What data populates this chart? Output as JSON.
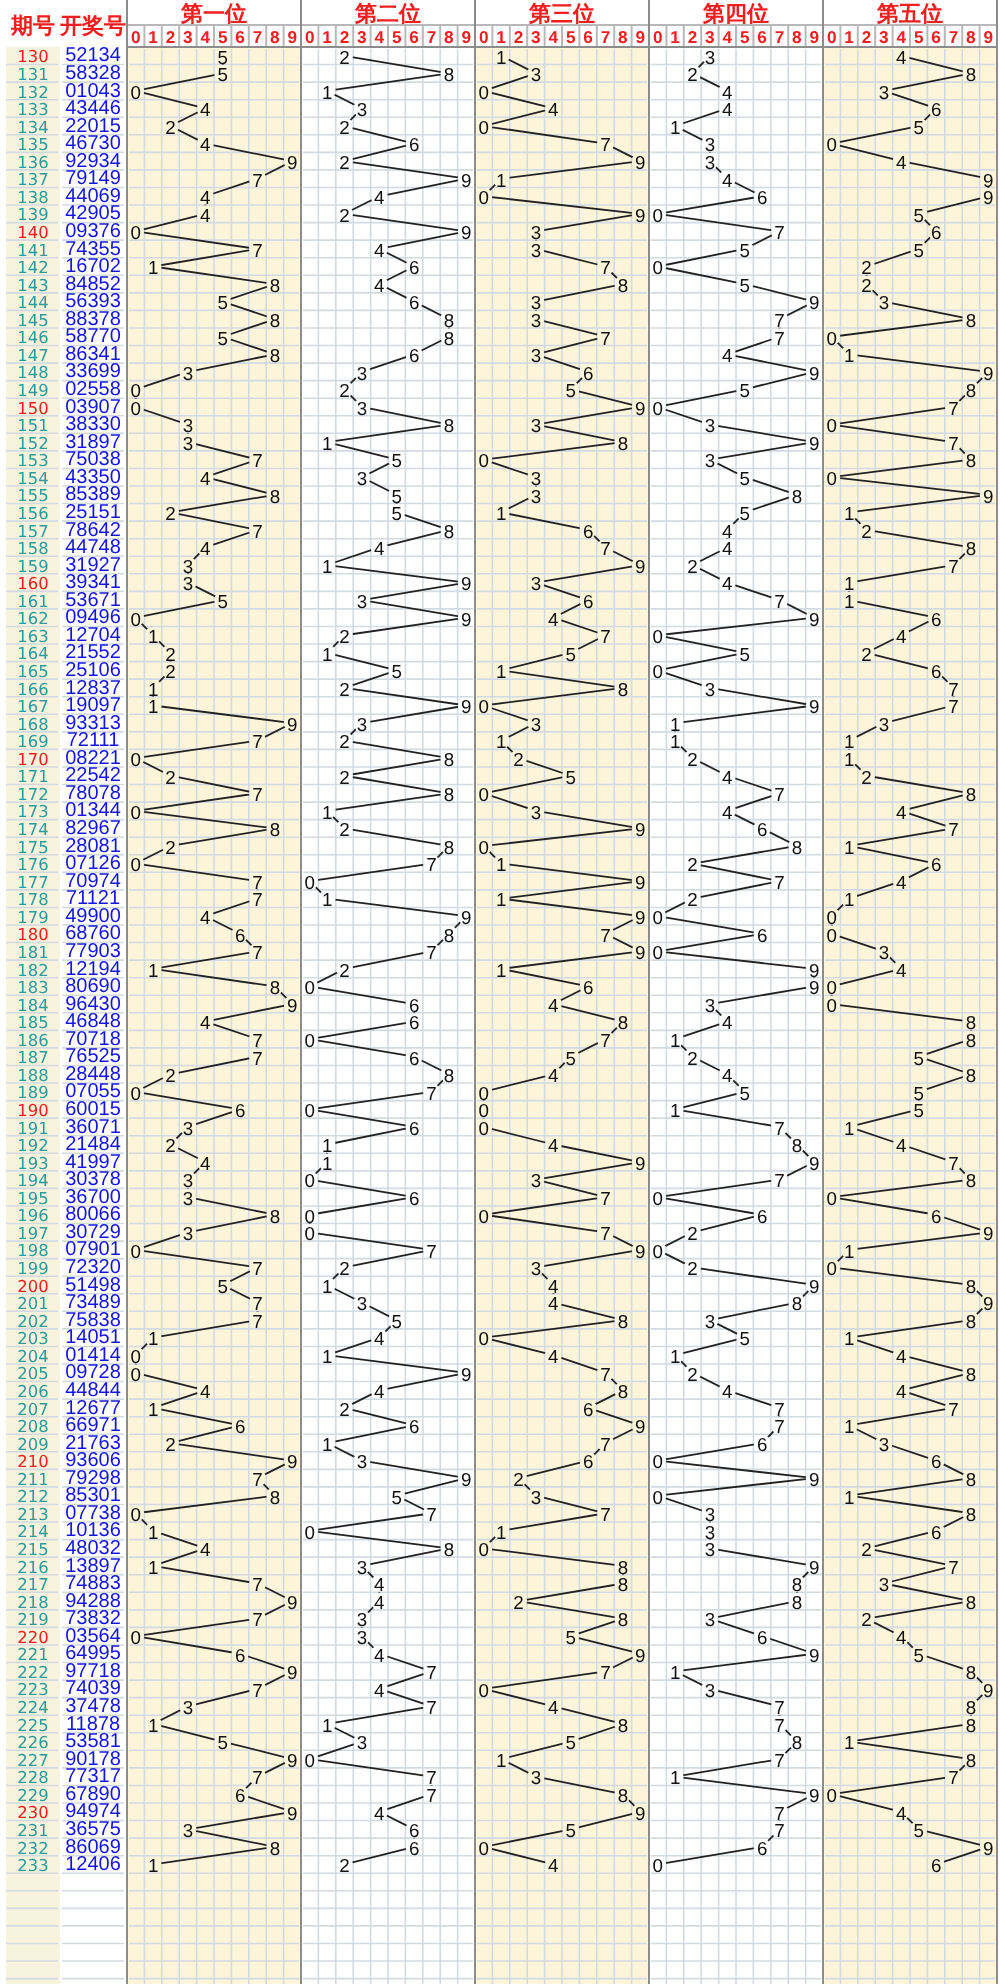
{
  "chart_data": [
    {
      "type": "line",
      "title": "第一位",
      "ylabel": "期号",
      "orientation": "horizontal",
      "color": "#222222",
      "xlim": [
        -0.5,
        9.5
      ],
      "xticks": [
        0,
        1,
        2,
        3,
        4,
        5,
        6,
        7,
        8,
        9
      ],
      "data_labels": true,
      "grid": true,
      "categories": [
        "130",
        "131",
        "132",
        "133",
        "134",
        "135",
        "136",
        "137",
        "138",
        "139",
        "140",
        "141",
        "142",
        "143",
        "144",
        "145",
        "146",
        "147",
        "148",
        "149",
        "150",
        "151",
        "152",
        "153",
        "154",
        "155",
        "156",
        "157",
        "158",
        "159",
        "160",
        "161",
        "162",
        "163",
        "164",
        "165",
        "166",
        "167",
        "168",
        "169",
        "170",
        "171",
        "172",
        "173",
        "174",
        "175",
        "176",
        "177",
        "178",
        "179",
        "180",
        "181",
        "182",
        "183",
        "184",
        "185",
        "186",
        "187",
        "188",
        "189",
        "190",
        "191",
        "192",
        "193",
        "194",
        "195",
        "196",
        "197",
        "198",
        "199",
        "200",
        "201",
        "202",
        "203",
        "204",
        "205",
        "206",
        "207",
        "208",
        "209",
        "210",
        "211",
        "212",
        "213",
        "214",
        "215",
        "216",
        "217",
        "218",
        "219",
        "220",
        "221",
        "222",
        "223",
        "224",
        "225",
        "226",
        "227",
        "228",
        "229",
        "230",
        "231",
        "232",
        "233"
      ],
      "values": [
        5,
        5,
        0,
        4,
        2,
        4,
        9,
        7,
        4,
        4,
        0,
        7,
        1,
        8,
        5,
        8,
        5,
        8,
        3,
        0,
        0,
        3,
        3,
        7,
        4,
        8,
        2,
        7,
        4,
        3,
        3,
        5,
        0,
        1,
        2,
        2,
        1,
        1,
        9,
        7,
        0,
        2,
        7,
        0,
        8,
        2,
        0,
        7,
        7,
        4,
        6,
        7,
        1,
        8,
        9,
        4,
        7,
        7,
        2,
        0,
        6,
        3,
        2,
        4,
        3,
        3,
        8,
        3,
        0,
        7,
        5,
        7,
        7,
        1,
        0,
        0,
        4,
        1,
        6,
        2,
        9,
        7,
        8,
        0,
        1,
        4,
        1,
        7,
        9,
        7,
        0,
        6,
        9,
        7,
        3,
        1,
        5,
        9,
        7,
        6,
        9,
        3,
        8,
        1
      ]
    },
    {
      "type": "other",
      "title": "开奖号",
      "annotations": [
        "52134",
        "58328",
        "01043",
        "43446",
        "22015",
        "46730",
        "92934",
        "79149",
        "44069",
        "42905",
        "09376",
        "74355",
        "16702",
        "84852",
        "56393",
        "88378",
        "58770",
        "86341",
        "33699",
        "02558",
        "03907",
        "38330",
        "31897",
        "75038",
        "43350",
        "85389",
        "25151",
        "78642",
        "44748",
        "31927",
        "39341",
        "53671",
        "09496",
        "12704",
        "21552",
        "25106",
        "12837",
        "19097",
        "93313",
        "72111",
        "08221",
        "22542",
        "78078",
        "01344",
        "82967",
        "28081",
        "07126",
        "70974",
        "71121",
        "49900",
        "68760",
        "77903",
        "12194",
        "80690",
        "96430",
        "46848",
        "70718",
        "76525",
        "28448",
        "07055",
        "60015",
        "36071",
        "21484",
        "41997",
        "30378",
        "36700",
        "80066",
        "30729",
        "07901",
        "72320",
        "51498",
        "73489",
        "75838",
        "14051",
        "01414",
        "09728",
        "44844",
        "12677",
        "66971",
        "21763",
        "93606",
        "79298",
        "85301",
        "07738",
        "10136",
        "48032",
        "13897",
        "74883",
        "94288",
        "73832",
        "03564",
        "64995",
        "97718",
        "74039",
        "37478",
        "11878",
        "53581",
        "90178",
        "77317",
        "67890",
        "94974",
        "36575",
        "86069",
        "12406"
      ]
    },
    {
      "type": "line",
      "title": "第二位",
      "orientation": "horizontal",
      "color": "#222222",
      "xlim": [
        -0.5,
        9.5
      ],
      "xticks": [
        0,
        1,
        2,
        3,
        4,
        5,
        6,
        7,
        8,
        9
      ],
      "tick_labels": "x",
      "data_labels": true,
      "grid": true,
      "values": [
        2,
        8,
        1,
        3,
        2,
        6,
        2,
        9,
        4,
        2,
        9,
        4,
        6,
        4,
        6,
        8,
        8,
        6,
        3,
        2,
        3,
        8,
        1,
        5,
        3,
        5,
        5,
        8,
        4,
        1,
        9,
        3,
        9,
        2,
        1,
        5,
        2,
        9,
        3,
        2,
        8,
        2,
        8,
        1,
        2,
        8,
        7,
        0,
        1,
        9,
        8,
        7,
        2,
        0,
        6,
        6,
        0,
        6,
        8,
        7,
        0,
        6,
        1,
        1,
        0,
        6,
        0,
        0,
        7,
        2,
        1,
        3,
        5,
        4,
        1,
        9,
        4,
        2,
        6,
        1,
        3,
        9,
        5,
        7,
        0,
        8,
        3,
        4,
        4,
        3,
        3,
        4,
        7,
        4,
        7,
        1,
        3,
        0,
        7,
        7,
        4,
        6,
        6,
        2
      ]
    },
    {
      "type": "line",
      "title": "第三位",
      "orientation": "horizontal",
      "color": "#222222",
      "xlim": [
        -0.5,
        9.5
      ],
      "xticks": [
        0,
        1,
        2,
        3,
        4,
        5,
        6,
        7,
        8,
        9
      ],
      "tick_labels": "x",
      "data_labels": true,
      "grid": true,
      "values": [
        1,
        3,
        0,
        4,
        0,
        7,
        9,
        1,
        0,
        9,
        3,
        3,
        7,
        8,
        3,
        3,
        7,
        3,
        6,
        5,
        9,
        3,
        8,
        0,
        3,
        3,
        1,
        6,
        7,
        9,
        3,
        6,
        4,
        7,
        5,
        1,
        8,
        0,
        3,
        1,
        2,
        5,
        0,
        3,
        9,
        0,
        1,
        9,
        1,
        9,
        7,
        9,
        1,
        6,
        4,
        8,
        7,
        5,
        4,
        0,
        0,
        0,
        4,
        9,
        3,
        7,
        0,
        7,
        9,
        3,
        4,
        4,
        8,
        0,
        4,
        7,
        8,
        6,
        9,
        7,
        6,
        2,
        3,
        7,
        1,
        0,
        8,
        8,
        2,
        8,
        5,
        9,
        7,
        0,
        4,
        8,
        5,
        1,
        3,
        8,
        9,
        5,
        0,
        4
      ]
    },
    {
      "type": "line",
      "title": "第四位",
      "orientation": "horizontal",
      "color": "#222222",
      "xlim": [
        -0.5,
        9.5
      ],
      "xticks": [
        0,
        1,
        2,
        3,
        4,
        5,
        6,
        7,
        8,
        9
      ],
      "tick_labels": "x",
      "data_labels": true,
      "grid": true,
      "values": [
        3,
        2,
        4,
        4,
        1,
        3,
        3,
        4,
        6,
        0,
        7,
        5,
        0,
        5,
        9,
        7,
        7,
        4,
        9,
        5,
        0,
        3,
        9,
        3,
        5,
        8,
        5,
        4,
        4,
        2,
        4,
        7,
        9,
        0,
        5,
        0,
        3,
        9,
        1,
        1,
        2,
        4,
        7,
        4,
        6,
        8,
        2,
        7,
        2,
        0,
        6,
        0,
        9,
        9,
        3,
        4,
        1,
        2,
        4,
        5,
        1,
        7,
        8,
        9,
        7,
        0,
        6,
        2,
        0,
        2,
        9,
        8,
        3,
        5,
        1,
        2,
        4,
        7,
        7,
        6,
        0,
        9,
        0,
        3,
        3,
        3,
        9,
        8,
        8,
        3,
        6,
        9,
        1,
        3,
        7,
        7,
        8,
        7,
        1,
        9,
        7,
        7,
        6,
        0
      ]
    },
    {
      "type": "line",
      "title": "第五位",
      "orientation": "horizontal",
      "color": "#222222",
      "xlim": [
        -0.5,
        9.5
      ],
      "xticks": [
        0,
        1,
        2,
        3,
        4,
        5,
        6,
        7,
        8,
        9
      ],
      "tick_labels": "x",
      "data_labels": true,
      "grid": true,
      "values": [
        4,
        8,
        3,
        6,
        5,
        0,
        4,
        9,
        9,
        5,
        6,
        5,
        2,
        2,
        3,
        8,
        0,
        1,
        9,
        8,
        7,
        0,
        7,
        8,
        0,
        9,
        1,
        2,
        8,
        7,
        1,
        1,
        6,
        4,
        2,
        6,
        7,
        7,
        3,
        1,
        1,
        2,
        8,
        4,
        7,
        1,
        6,
        4,
        1,
        0,
        0,
        3,
        4,
        0,
        0,
        8,
        8,
        5,
        8,
        5,
        5,
        1,
        4,
        7,
        8,
        0,
        6,
        9,
        1,
        0,
        8,
        9,
        8,
        1,
        4,
        8,
        4,
        7,
        1,
        3,
        6,
        8,
        1,
        8,
        6,
        2,
        7,
        3,
        8,
        2,
        4,
        5,
        8,
        9,
        8,
        8,
        1,
        8,
        7,
        0,
        4,
        5,
        9,
        6
      ]
    }
  ]
}
